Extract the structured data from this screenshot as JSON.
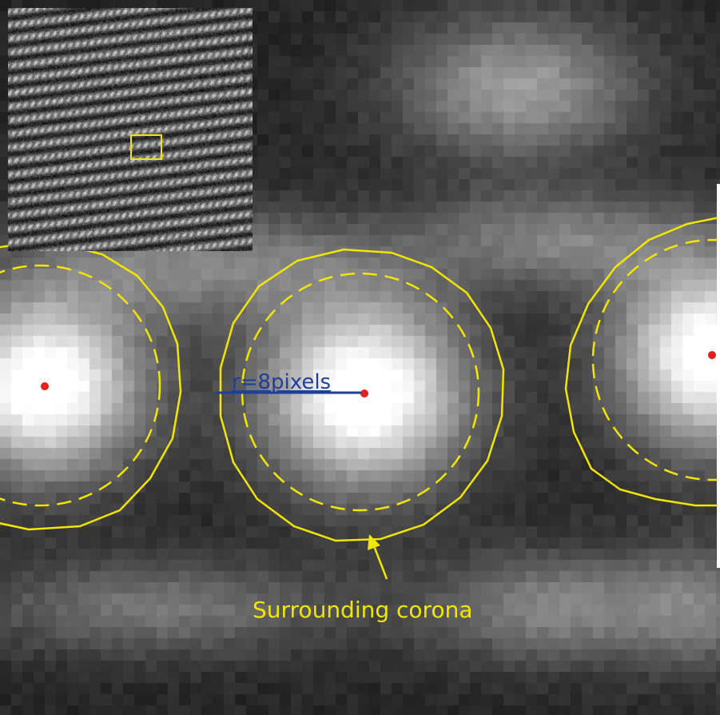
{
  "image": {
    "description_ids": {
      "main_view": "stem-intensity-map",
      "inset_view": "lattice-overview"
    }
  },
  "annotations": {
    "radius_label": "r=8pixels",
    "corona_label": "Surrounding corona"
  },
  "colors": {
    "circle_line": "#f2e600",
    "center_dot": "#e51e1e",
    "radius_line": "#1f3f9a",
    "corona_text": "#f2e600",
    "radius_text": "#1f3f9a"
  },
  "icons": {
    "center_marker": "red-dot-icon",
    "pointer": "arrow-icon"
  }
}
